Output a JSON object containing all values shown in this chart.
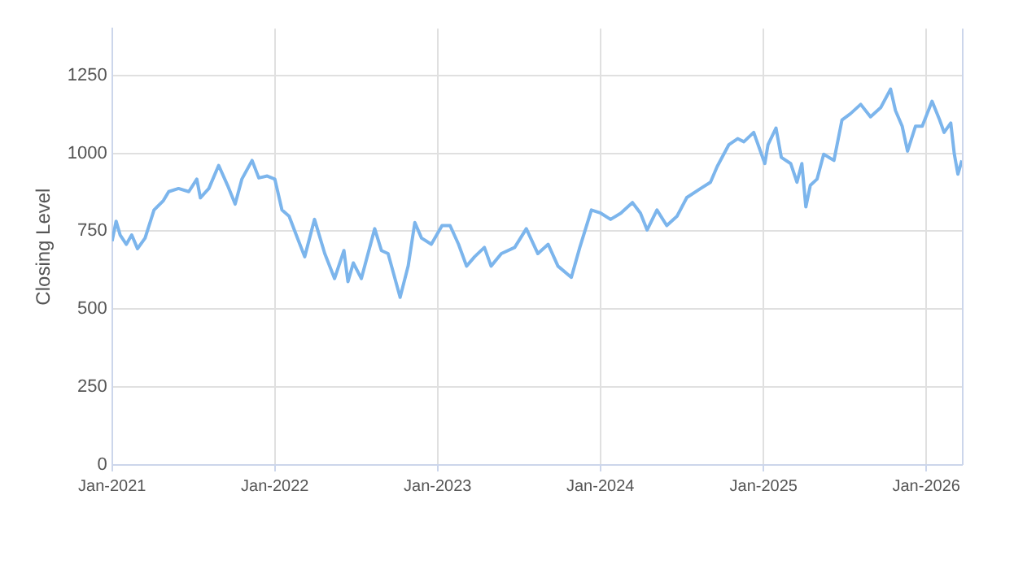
{
  "chart_data": {
    "type": "line",
    "ylabel": "Closing Level",
    "xlim": [
      "2021-01-01",
      "2026-03-22"
    ],
    "xticks": [
      {
        "value": "2021-01-01",
        "label": "Jan-2021"
      },
      {
        "value": "2022-01-01",
        "label": "Jan-2022"
      },
      {
        "value": "2023-01-01",
        "label": "Jan-2023"
      },
      {
        "value": "2024-01-01",
        "label": "Jan-2024"
      },
      {
        "value": "2025-01-01",
        "label": "Jan-2025"
      },
      {
        "value": "2026-01-01",
        "label": "Jan-2026"
      }
    ],
    "ylim": [
      0,
      1400
    ],
    "yticks": [
      0,
      250,
      500,
      750,
      1000,
      1250
    ],
    "grid": true,
    "legend": false,
    "marker": "none",
    "line_style": "solid",
    "x": [
      "2021-01-01",
      "2021-01-10",
      "2021-01-19",
      "2021-02-02",
      "2021-02-14",
      "2021-02-27",
      "2021-03-16",
      "2021-04-05",
      "2021-04-26",
      "2021-05-08",
      "2021-05-30",
      "2021-06-22",
      "2021-07-10",
      "2021-07-18",
      "2021-08-06",
      "2021-08-28",
      "2021-09-17",
      "2021-10-04",
      "2021-10-19",
      "2021-11-11",
      "2021-11-26",
      "2021-12-15",
      "2022-01-01",
      "2022-01-17",
      "2022-02-02",
      "2022-02-18",
      "2022-03-09",
      "2022-03-31",
      "2022-04-23",
      "2022-05-15",
      "2022-06-05",
      "2022-06-14",
      "2022-06-26",
      "2022-07-14",
      "2022-08-13",
      "2022-08-28",
      "2022-09-12",
      "2022-10-09",
      "2022-10-27",
      "2022-11-11",
      "2022-11-26",
      "2022-12-18",
      "2023-01-11",
      "2023-01-29",
      "2023-02-17",
      "2023-03-07",
      "2023-03-25",
      "2023-04-16",
      "2023-05-01",
      "2023-05-24",
      "2023-06-23",
      "2023-07-19",
      "2023-08-14",
      "2023-09-06",
      "2023-09-28",
      "2023-10-28",
      "2023-11-16",
      "2023-12-12",
      "2024-01-02",
      "2024-01-24",
      "2024-02-16",
      "2024-03-13",
      "2024-03-31",
      "2024-04-15",
      "2024-05-07",
      "2024-05-29",
      "2024-06-21",
      "2024-07-13",
      "2024-08-13",
      "2024-09-04",
      "2024-09-19",
      "2024-10-15",
      "2024-11-04",
      "2024-11-18",
      "2024-12-10",
      "2025-01-04",
      "2025-01-11",
      "2025-01-29",
      "2025-02-10",
      "2025-03-03",
      "2025-03-17",
      "2025-03-28",
      "2025-04-06",
      "2025-04-16",
      "2025-05-01",
      "2025-05-16",
      "2025-06-08",
      "2025-06-26",
      "2025-07-15",
      "2025-08-07",
      "2025-08-29",
      "2025-09-21",
      "2025-10-13",
      "2025-10-24",
      "2025-11-08",
      "2025-11-20",
      "2025-12-08",
      "2025-12-23",
      "2026-01-14",
      "2026-01-31",
      "2026-02-10",
      "2026-02-25",
      "2026-03-05",
      "2026-03-13",
      "2026-03-22"
    ],
    "series": [
      {
        "color": "#7cb5ec",
        "values": [
          718,
          782,
          738,
          708,
          738,
          694,
          728,
          818,
          848,
          877,
          887,
          877,
          917,
          857,
          887,
          961,
          897,
          837,
          917,
          977,
          921,
          927,
          917,
          818,
          798,
          738,
          668,
          788,
          678,
          598,
          688,
          588,
          648,
          598,
          758,
          688,
          678,
          538,
          638,
          778,
          728,
          708,
          768,
          768,
          708,
          638,
          668,
          698,
          638,
          678,
          698,
          758,
          678,
          708,
          638,
          602,
          698,
          818,
          808,
          788,
          808,
          842,
          808,
          754,
          818,
          768,
          798,
          858,
          887,
          907,
          957,
          1027,
          1047,
          1037,
          1067,
          967,
          1027,
          1081,
          987,
          967,
          907,
          967,
          828,
          897,
          917,
          997,
          977,
          1107,
          1127,
          1157,
          1117,
          1147,
          1206,
          1137,
          1087,
          1007,
          1087,
          1087,
          1167,
          1107,
          1067,
          1097,
          997,
          933,
          977
        ]
      }
    ]
  }
}
